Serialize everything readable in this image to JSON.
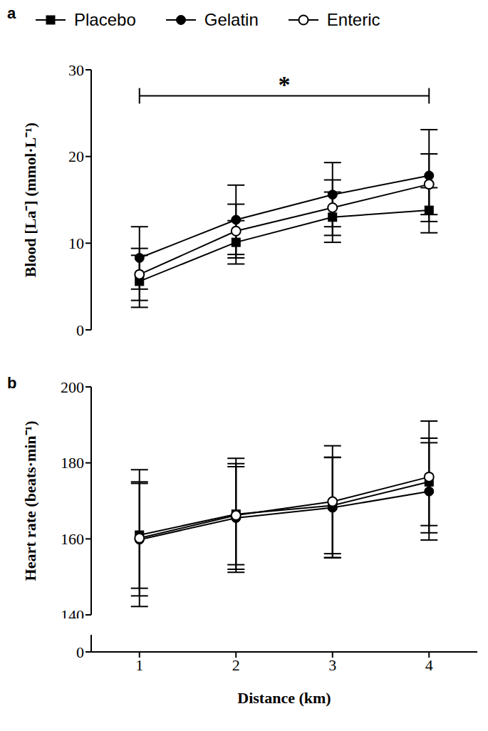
{
  "chart_data": [
    {
      "type": "line",
      "title": "a",
      "legend": "top",
      "tick_labels": "y",
      "ylabel": "Blood [La⁻] (mmol·L⁻¹)",
      "x": [
        1,
        2,
        3,
        4
      ],
      "xlim": [
        0.5,
        4.5
      ],
      "xticks": [
        1,
        2,
        3,
        4
      ],
      "ylim": [
        0,
        30
      ],
      "yticks": [
        0,
        10,
        20,
        30
      ],
      "annotations": [
        {
          "text": "*",
          "x": [
            1,
            4
          ],
          "y": 27
        }
      ],
      "series": [
        {
          "name": "Placebo",
          "color": "#000000",
          "marker": "square",
          "values": [
            5.6,
            10.1,
            13.0,
            13.8
          ],
          "error": [
            3.0,
            2.5,
            2.9,
            2.6
          ]
        },
        {
          "name": "Gelatin",
          "color": "#000000",
          "marker": "circle",
          "values": [
            8.3,
            12.7,
            15.6,
            17.8
          ],
          "error": [
            3.6,
            4.0,
            3.7,
            5.3
          ]
        },
        {
          "name": "Enteric",
          "color": "#000000",
          "marker": "circle_open",
          "values": [
            6.4,
            11.4,
            14.1,
            16.8
          ],
          "error": [
            3.0,
            3.1,
            3.2,
            3.5
          ]
        }
      ]
    },
    {
      "type": "line",
      "title": "b",
      "ylabel": "Heart rate (beats·min⁻¹)",
      "xlabel": "Distance (km)",
      "x": [
        1,
        2,
        3,
        4
      ],
      "xlim": [
        0.5,
        4.5
      ],
      "xticks": [
        1,
        2,
        3,
        4
      ],
      "ylim": [
        0,
        200
      ],
      "yticks": [
        0,
        140,
        160,
        180,
        200
      ],
      "y_break": [
        0,
        140
      ],
      "series": [
        {
          "name": "Placebo",
          "color": "#000000",
          "marker": "square",
          "values": [
            161.0,
            166.5,
            168.8,
            175.0
          ],
          "error": [
            14.0,
            13.3,
            12.7,
            11.5
          ]
        },
        {
          "name": "Gelatin",
          "color": "#000000",
          "marker": "circle",
          "values": [
            159.8,
            165.5,
            168.2,
            172.5
          ],
          "error": [
            14.8,
            13.5,
            13.2,
            12.8
          ]
        },
        {
          "name": "Enteric",
          "color": "#000000",
          "marker": "circle_open",
          "values": [
            160.2,
            166.2,
            169.8,
            176.3
          ],
          "error": [
            18.0,
            15.0,
            14.7,
            14.7
          ]
        }
      ]
    }
  ]
}
